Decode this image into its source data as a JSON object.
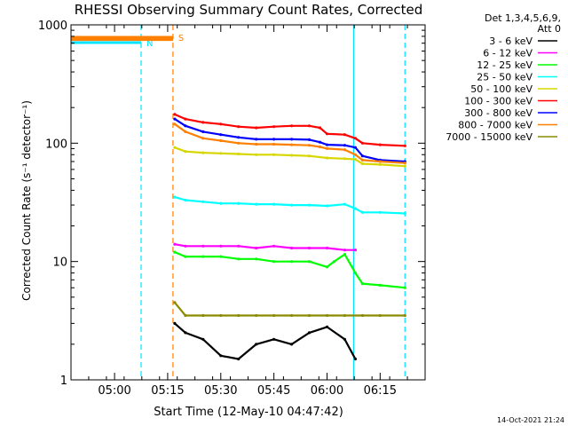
{
  "chart_data": {
    "type": "line",
    "title": "RHESSI Observing Summary Count Rates, Corrected",
    "xlabel": "Start Time (12-May-10 04:47:42)",
    "ylabel": "Corrected Count Rate (s⁻¹ detector⁻¹)",
    "yscale": "log",
    "ylim": [
      1,
      1000
    ],
    "xlim_minutes_after_start": [
      0,
      100
    ],
    "x_ticks": [
      "05:00",
      "05:15",
      "05:30",
      "05:45",
      "06:00",
      "06:15"
    ],
    "y_ticks": [
      "1",
      "10",
      "100",
      "1000"
    ],
    "timestamp": "14-Oct-2021 21:24",
    "legend_header": [
      "Det 1,3,4,5,6,9,",
      "Att 0"
    ],
    "legend_position": "right",
    "annotations": [
      {
        "label": "N",
        "color": "#00e5ff",
        "x_start": "04:47:42",
        "x_end": "05:07:30"
      },
      {
        "label": "S",
        "color": "#ff7f00",
        "x_start": "04:47:42",
        "x_end": "05:16:30"
      }
    ],
    "vertical_markers": [
      {
        "time": "05:07:30",
        "color": "#00e5ff",
        "style": "dashed"
      },
      {
        "time": "05:16:30",
        "color": "#ff7f00",
        "style": "dashed"
      },
      {
        "time": "06:07:30",
        "color": "#00e5ff",
        "style": "solid"
      },
      {
        "time": "06:22:00",
        "color": "#00e5ff",
        "style": "dashed"
      }
    ],
    "series": [
      {
        "name": "3 - 6 keV",
        "color": "#000000",
        "x": [
          "05:17",
          "05:20",
          "05:25",
          "05:30",
          "05:35",
          "05:40",
          "05:45",
          "05:50",
          "05:55",
          "06:00",
          "06:05",
          "06:08"
        ],
        "y": [
          3,
          2.5,
          2.2,
          1.6,
          1.5,
          2.0,
          2.2,
          2.0,
          2.5,
          2.8,
          2.2,
          1.5
        ]
      },
      {
        "name": "6 - 12 keV",
        "color": "#ff00ff",
        "x": [
          "05:17",
          "05:20",
          "05:25",
          "05:30",
          "05:35",
          "05:40",
          "05:45",
          "05:50",
          "05:55",
          "06:00",
          "06:05",
          "06:08"
        ],
        "y": [
          14,
          13.5,
          13.5,
          13.5,
          13.5,
          13,
          13.5,
          13,
          13,
          13,
          12.5,
          12.5
        ]
      },
      {
        "name": "12 - 25 keV",
        "color": "#00ff00",
        "x": [
          "05:17",
          "05:20",
          "05:25",
          "05:30",
          "05:35",
          "05:40",
          "05:45",
          "05:50",
          "05:55",
          "06:00",
          "06:02",
          "06:05",
          "06:08",
          "06:10",
          "06:15",
          "06:22"
        ],
        "y": [
          12,
          11,
          11,
          11,
          10.5,
          10.5,
          10,
          10,
          10,
          9,
          10,
          11.5,
          8,
          6.5,
          6.3,
          6
        ]
      },
      {
        "name": "25 - 50 keV",
        "color": "#00ffff",
        "x": [
          "05:17",
          "05:20",
          "05:25",
          "05:30",
          "05:35",
          "05:40",
          "05:45",
          "05:50",
          "05:55",
          "06:00",
          "06:05",
          "06:08",
          "06:10",
          "06:15",
          "06:22"
        ],
        "y": [
          35,
          33,
          32,
          31,
          31,
          30.5,
          30.5,
          30,
          30,
          29.5,
          30.5,
          28,
          26,
          26,
          25.5
        ]
      },
      {
        "name": "50 - 100 keV",
        "color": "#d7d700",
        "x": [
          "05:17",
          "05:20",
          "05:25",
          "05:30",
          "05:35",
          "05:40",
          "05:45",
          "05:50",
          "05:55",
          "06:00",
          "06:05",
          "06:08",
          "06:10",
          "06:15",
          "06:22"
        ],
        "y": [
          92,
          85,
          83,
          82,
          81,
          80,
          80,
          79,
          78,
          75,
          74,
          73,
          67,
          66,
          64
        ]
      },
      {
        "name": "100 - 300 keV",
        "color": "#ff0000",
        "x": [
          "05:17",
          "05:20",
          "05:25",
          "05:30",
          "05:35",
          "05:40",
          "05:45",
          "05:50",
          "05:55",
          "05:58",
          "06:00",
          "06:05",
          "06:08",
          "06:10",
          "06:15",
          "06:22"
        ],
        "y": [
          175,
          160,
          150,
          145,
          138,
          135,
          138,
          140,
          140,
          135,
          120,
          118,
          110,
          100,
          97,
          95
        ]
      },
      {
        "name": "300 - 800 keV",
        "color": "#0000ff",
        "x": [
          "05:17",
          "05:20",
          "05:25",
          "05:30",
          "05:35",
          "05:40",
          "05:45",
          "05:50",
          "05:55",
          "05:58",
          "06:00",
          "06:05",
          "06:08",
          "06:10",
          "06:15",
          "06:22"
        ],
        "y": [
          160,
          140,
          125,
          118,
          112,
          108,
          108,
          108,
          107,
          102,
          97,
          96,
          92,
          78,
          72,
          70
        ]
      },
      {
        "name": "800 - 7000 keV",
        "color": "#ff7f00",
        "x": [
          "05:17",
          "05:20",
          "05:25",
          "05:30",
          "05:35",
          "05:40",
          "05:45",
          "05:50",
          "05:55",
          "05:58",
          "06:00",
          "06:05",
          "06:08",
          "06:10",
          "06:15",
          "06:22"
        ],
        "y": [
          145,
          125,
          110,
          105,
          100,
          98,
          98,
          97,
          96,
          93,
          90,
          88,
          80,
          72,
          70,
          68
        ],
        "pre_flare": {
          "x": [
            "04:47:42",
            "05:16:30"
          ],
          "y": [
            750,
            750
          ]
        }
      },
      {
        "name": "7000 - 15000 keV",
        "color": "#8b8b00",
        "x": [
          "05:17",
          "05:20",
          "05:25",
          "05:30",
          "05:35",
          "05:40",
          "05:45",
          "05:50",
          "05:55",
          "06:00",
          "06:05",
          "06:10",
          "06:15",
          "06:22"
        ],
        "y": [
          4.5,
          3.5,
          3.5,
          3.5,
          3.5,
          3.5,
          3.5,
          3.5,
          3.5,
          3.5,
          3.5,
          3.5,
          3.5,
          3.5
        ]
      }
    ]
  }
}
